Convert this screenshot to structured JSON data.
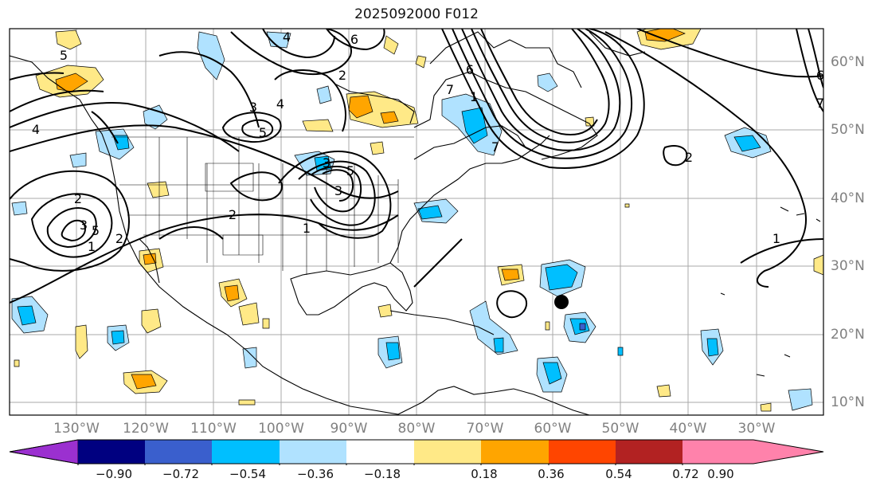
{
  "title": "2025092000 F012",
  "lon_labels": [
    "130°W",
    "120°W",
    "110°W",
    "100°W",
    "90°W",
    "80°W",
    "70°W",
    "60°W",
    "50°W",
    "40°W",
    "30°W"
  ],
  "lat_labels": [
    "60°N",
    "50°N",
    "40°N",
    "30°N",
    "20°N",
    "10°N"
  ],
  "contour_labels": [
    "5",
    "4",
    "6",
    "2",
    "3",
    "4",
    "5",
    "1",
    "6",
    "7",
    "2",
    "3",
    "5",
    "4",
    "3",
    "2",
    "1",
    "5",
    "3",
    "2",
    "1",
    "6",
    "7",
    "2",
    "1",
    "7"
  ],
  "colorbar": {
    "tick_labels": [
      "−0.90",
      "−0.72",
      "−0.54",
      "−0.36",
      "−0.18",
      "0.18",
      "0.36",
      "0.54",
      "0.72",
      "0.90"
    ],
    "colors": [
      "#9b30d0",
      "#000080",
      "#3a5fcd",
      "#00bfff",
      "#b0e2ff",
      "#ffffff",
      "#ffe987",
      "#ffa500",
      "#ff4500",
      "#b22222",
      "#ff82ab"
    ]
  }
}
